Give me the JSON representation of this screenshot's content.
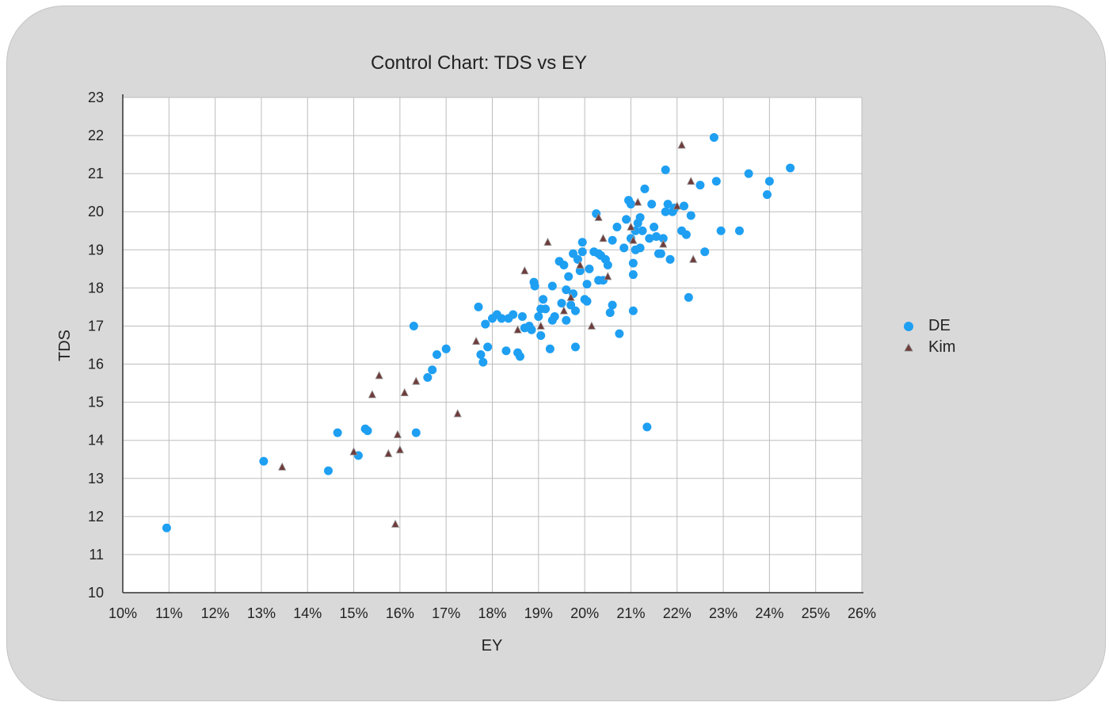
{
  "chart_data": {
    "type": "scatter",
    "title": "Control Chart: TDS vs EY",
    "xlabel": "EY",
    "ylabel": "TDS",
    "xlim": [
      10,
      26
    ],
    "ylim": [
      10,
      23
    ],
    "x_ticks": [
      "10%",
      "11%",
      "12%",
      "13%",
      "14%",
      "15%",
      "16%",
      "17%",
      "18%",
      "19%",
      "20%",
      "21%",
      "22%",
      "23%",
      "24%",
      "25%",
      "26%"
    ],
    "y_ticks": [
      "10",
      "11",
      "12",
      "13",
      "14",
      "15",
      "16",
      "17",
      "18",
      "19",
      "20",
      "21",
      "22",
      "23"
    ],
    "grid": true,
    "legend_position": "right",
    "series": [
      {
        "name": "DE",
        "color": "#1e9ff2",
        "marker": "circle",
        "points": [
          [
            10.95,
            11.7
          ],
          [
            13.05,
            13.45
          ],
          [
            14.45,
            13.2
          ],
          [
            14.65,
            14.2
          ],
          [
            15.1,
            13.6
          ],
          [
            15.25,
            14.3
          ],
          [
            15.3,
            14.25
          ],
          [
            16.3,
            17.0
          ],
          [
            16.35,
            14.2
          ],
          [
            16.6,
            15.65
          ],
          [
            16.7,
            15.85
          ],
          [
            16.8,
            16.25
          ],
          [
            17.0,
            16.4
          ],
          [
            17.7,
            17.5
          ],
          [
            17.75,
            16.25
          ],
          [
            17.8,
            16.05
          ],
          [
            17.9,
            16.45
          ],
          [
            17.85,
            17.05
          ],
          [
            18.0,
            17.2
          ],
          [
            18.1,
            17.3
          ],
          [
            18.2,
            17.2
          ],
          [
            18.3,
            16.35
          ],
          [
            18.35,
            17.2
          ],
          [
            18.45,
            17.3
          ],
          [
            18.55,
            16.3
          ],
          [
            18.6,
            16.2
          ],
          [
            18.65,
            17.25
          ],
          [
            18.7,
            16.95
          ],
          [
            18.8,
            17.0
          ],
          [
            18.85,
            16.9
          ],
          [
            18.9,
            18.15
          ],
          [
            18.92,
            18.05
          ],
          [
            19.0,
            17.25
          ],
          [
            19.05,
            17.45
          ],
          [
            19.05,
            16.75
          ],
          [
            19.1,
            17.7
          ],
          [
            19.15,
            17.45
          ],
          [
            19.25,
            16.4
          ],
          [
            19.3,
            17.15
          ],
          [
            19.3,
            18.05
          ],
          [
            19.35,
            17.25
          ],
          [
            19.45,
            18.7
          ],
          [
            19.5,
            17.6
          ],
          [
            19.55,
            18.6
          ],
          [
            19.6,
            17.95
          ],
          [
            19.6,
            17.15
          ],
          [
            19.65,
            18.3
          ],
          [
            19.7,
            17.55
          ],
          [
            19.75,
            17.85
          ],
          [
            19.75,
            18.9
          ],
          [
            19.8,
            17.4
          ],
          [
            19.8,
            16.45
          ],
          [
            19.85,
            18.75
          ],
          [
            19.9,
            18.45
          ],
          [
            19.95,
            18.95
          ],
          [
            19.95,
            19.2
          ],
          [
            20.0,
            17.7
          ],
          [
            20.05,
            17.65
          ],
          [
            20.05,
            18.1
          ],
          [
            20.1,
            18.5
          ],
          [
            20.2,
            18.95
          ],
          [
            20.25,
            19.95
          ],
          [
            20.3,
            18.2
          ],
          [
            20.3,
            18.9
          ],
          [
            20.35,
            18.85
          ],
          [
            20.4,
            18.2
          ],
          [
            20.45,
            18.75
          ],
          [
            20.5,
            18.6
          ],
          [
            20.55,
            17.35
          ],
          [
            20.6,
            17.55
          ],
          [
            20.6,
            19.25
          ],
          [
            20.7,
            19.6
          ],
          [
            20.75,
            16.8
          ],
          [
            20.85,
            19.05
          ],
          [
            20.9,
            19.8
          ],
          [
            20.95,
            20.3
          ],
          [
            21.0,
            20.2
          ],
          [
            21.0,
            19.3
          ],
          [
            21.05,
            18.65
          ],
          [
            21.05,
            18.35
          ],
          [
            21.05,
            17.4
          ],
          [
            21.1,
            19.5
          ],
          [
            21.1,
            19.0
          ],
          [
            21.15,
            19.7
          ],
          [
            21.2,
            19.85
          ],
          [
            21.2,
            19.05
          ],
          [
            21.25,
            19.5
          ],
          [
            21.3,
            20.6
          ],
          [
            21.35,
            14.35
          ],
          [
            21.4,
            19.3
          ],
          [
            21.45,
            20.2
          ],
          [
            21.5,
            19.6
          ],
          [
            21.55,
            19.35
          ],
          [
            21.6,
            18.9
          ],
          [
            21.65,
            18.9
          ],
          [
            21.7,
            19.3
          ],
          [
            21.75,
            20.0
          ],
          [
            21.75,
            21.1
          ],
          [
            21.8,
            20.2
          ],
          [
            21.85,
            18.75
          ],
          [
            21.9,
            20.0
          ],
          [
            21.95,
            20.1
          ],
          [
            22.1,
            19.5
          ],
          [
            22.15,
            20.15
          ],
          [
            22.2,
            19.4
          ],
          [
            22.25,
            17.75
          ],
          [
            22.3,
            19.9
          ],
          [
            22.5,
            20.7
          ],
          [
            22.6,
            18.95
          ],
          [
            22.8,
            21.95
          ],
          [
            22.85,
            20.8
          ],
          [
            22.95,
            19.5
          ],
          [
            23.35,
            19.5
          ],
          [
            23.55,
            21.0
          ],
          [
            23.95,
            20.45
          ],
          [
            24.0,
            20.8
          ],
          [
            24.45,
            21.15
          ]
        ]
      },
      {
        "name": "Kim",
        "color": "#6f3c3c",
        "marker": "triangle",
        "points": [
          [
            13.45,
            13.3
          ],
          [
            15.0,
            13.7
          ],
          [
            15.4,
            15.2
          ],
          [
            15.55,
            15.7
          ],
          [
            15.75,
            13.65
          ],
          [
            15.9,
            11.8
          ],
          [
            15.95,
            14.15
          ],
          [
            16.0,
            13.75
          ],
          [
            16.1,
            15.25
          ],
          [
            16.35,
            15.55
          ],
          [
            17.25,
            14.7
          ],
          [
            17.65,
            16.6
          ],
          [
            18.55,
            16.9
          ],
          [
            18.7,
            18.45
          ],
          [
            19.05,
            17.0
          ],
          [
            19.2,
            19.2
          ],
          [
            19.55,
            17.4
          ],
          [
            19.7,
            17.75
          ],
          [
            19.9,
            18.6
          ],
          [
            20.15,
            17.0
          ],
          [
            20.3,
            19.85
          ],
          [
            20.4,
            19.3
          ],
          [
            20.5,
            18.3
          ],
          [
            21.0,
            19.6
          ],
          [
            21.05,
            19.25
          ],
          [
            21.15,
            20.25
          ],
          [
            21.7,
            19.15
          ],
          [
            22.0,
            20.15
          ],
          [
            22.1,
            21.75
          ],
          [
            22.3,
            20.8
          ],
          [
            22.35,
            18.75
          ]
        ]
      }
    ]
  }
}
